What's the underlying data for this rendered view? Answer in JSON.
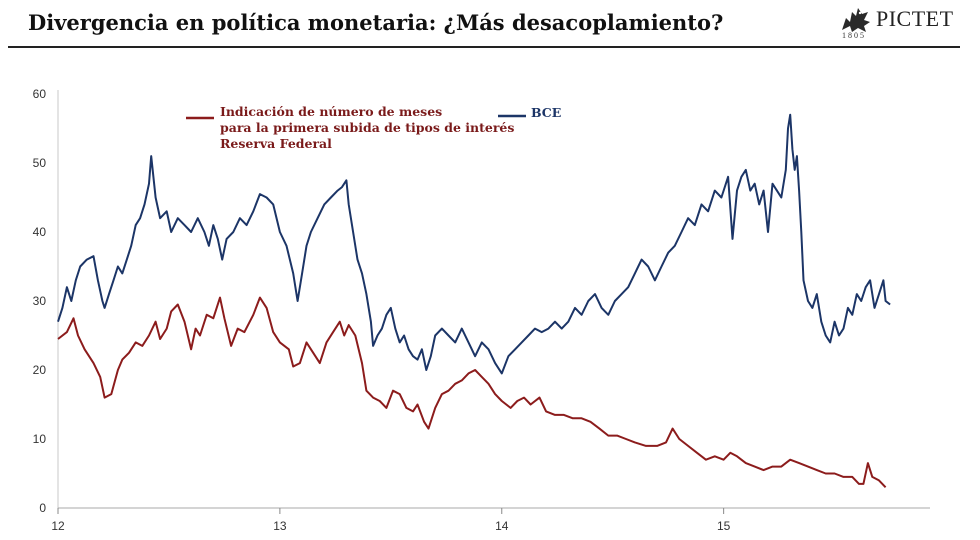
{
  "header": {
    "title": "Divergencia en política monetaria: ¿Más desacoplamiento?",
    "logo_word": "PICTET",
    "logo_year": "1805"
  },
  "chart_data": {
    "type": "line",
    "title": "",
    "xlabel": "",
    "ylabel": "",
    "xlim": [
      12,
      15.93
    ],
    "ylim": [
      0,
      60
    ],
    "x_ticks": [
      "12",
      "13",
      "14",
      "15"
    ],
    "y_ticks": [
      "0",
      "10",
      "20",
      "30",
      "40",
      "50",
      "60"
    ],
    "grid": false,
    "legend_position": "top-center",
    "colors": {
      "fed": "#8c1c1c",
      "ecb": "#1c3567"
    },
    "series": [
      {
        "key": "fed",
        "legend_lines": [
          "Indicación de número de meses",
          "para la primera subida de tipos de interés",
          "Reserva Federal"
        ],
        "points": [
          [
            12.0,
            24.5
          ],
          [
            12.04,
            25.5
          ],
          [
            12.07,
            27.5
          ],
          [
            12.09,
            25
          ],
          [
            12.12,
            23
          ],
          [
            12.16,
            21
          ],
          [
            12.19,
            19
          ],
          [
            12.21,
            16
          ],
          [
            12.24,
            16.5
          ],
          [
            12.27,
            20
          ],
          [
            12.29,
            21.5
          ],
          [
            12.32,
            22.5
          ],
          [
            12.35,
            24
          ],
          [
            12.38,
            23.5
          ],
          [
            12.41,
            25
          ],
          [
            12.44,
            27
          ],
          [
            12.46,
            24.5
          ],
          [
            12.49,
            26
          ],
          [
            12.51,
            28.5
          ],
          [
            12.54,
            29.5
          ],
          [
            12.57,
            27
          ],
          [
            12.6,
            23
          ],
          [
            12.62,
            26
          ],
          [
            12.64,
            25
          ],
          [
            12.67,
            28
          ],
          [
            12.7,
            27.5
          ],
          [
            12.73,
            30.5
          ],
          [
            12.75,
            27.5
          ],
          [
            12.78,
            23.5
          ],
          [
            12.81,
            26
          ],
          [
            12.84,
            25.5
          ],
          [
            12.88,
            28
          ],
          [
            12.91,
            30.5
          ],
          [
            12.94,
            29
          ],
          [
            12.97,
            25.5
          ],
          [
            13.0,
            24
          ],
          [
            13.04,
            23
          ],
          [
            13.06,
            20.5
          ],
          [
            13.09,
            21
          ],
          [
            13.12,
            24
          ],
          [
            13.15,
            22.5
          ],
          [
            13.18,
            21
          ],
          [
            13.21,
            24
          ],
          [
            13.24,
            25.5
          ],
          [
            13.27,
            27
          ],
          [
            13.29,
            25
          ],
          [
            13.31,
            26.5
          ],
          [
            13.34,
            25
          ],
          [
            13.37,
            21
          ],
          [
            13.39,
            17
          ],
          [
            13.42,
            16
          ],
          [
            13.45,
            15.5
          ],
          [
            13.48,
            14.5
          ],
          [
            13.51,
            17
          ],
          [
            13.54,
            16.5
          ],
          [
            13.57,
            14.5
          ],
          [
            13.6,
            14
          ],
          [
            13.62,
            15
          ],
          [
            13.65,
            12.5
          ],
          [
            13.67,
            11.5
          ],
          [
            13.7,
            14.5
          ],
          [
            13.73,
            16.5
          ],
          [
            13.76,
            17
          ],
          [
            13.79,
            18
          ],
          [
            13.82,
            18.5
          ],
          [
            13.85,
            19.5
          ],
          [
            13.88,
            20
          ],
          [
            13.91,
            19
          ],
          [
            13.94,
            18
          ],
          [
            13.97,
            16.5
          ],
          [
            14.0,
            15.5
          ],
          [
            14.04,
            14.5
          ],
          [
            14.07,
            15.5
          ],
          [
            14.1,
            16
          ],
          [
            14.13,
            15
          ],
          [
            14.17,
            16
          ],
          [
            14.2,
            14
          ],
          [
            14.24,
            13.5
          ],
          [
            14.28,
            13.5
          ],
          [
            14.32,
            13
          ],
          [
            14.36,
            13
          ],
          [
            14.4,
            12.5
          ],
          [
            14.44,
            11.5
          ],
          [
            14.48,
            10.5
          ],
          [
            14.52,
            10.5
          ],
          [
            14.56,
            10
          ],
          [
            14.6,
            9.5
          ],
          [
            14.65,
            9
          ],
          [
            14.7,
            9
          ],
          [
            14.74,
            9.5
          ],
          [
            14.77,
            11.5
          ],
          [
            14.8,
            10
          ],
          [
            14.84,
            9
          ],
          [
            14.88,
            8
          ],
          [
            14.92,
            7
          ],
          [
            14.96,
            7.5
          ],
          [
            15.0,
            7
          ],
          [
            15.03,
            8
          ],
          [
            15.06,
            7.5
          ],
          [
            15.1,
            6.5
          ],
          [
            15.14,
            6
          ],
          [
            15.18,
            5.5
          ],
          [
            15.22,
            6
          ],
          [
            15.26,
            6
          ],
          [
            15.3,
            7
          ],
          [
            15.34,
            6.5
          ],
          [
            15.38,
            6
          ],
          [
            15.42,
            5.5
          ],
          [
            15.46,
            5
          ],
          [
            15.5,
            5
          ],
          [
            15.54,
            4.5
          ],
          [
            15.58,
            4.5
          ],
          [
            15.61,
            3.5
          ],
          [
            15.63,
            3.5
          ],
          [
            15.65,
            6.5
          ],
          [
            15.67,
            4.5
          ],
          [
            15.7,
            4
          ],
          [
            15.73,
            3
          ]
        ]
      },
      {
        "key": "ecb",
        "name": "BCE",
        "points": [
          [
            12.0,
            27
          ],
          [
            12.02,
            29
          ],
          [
            12.04,
            32
          ],
          [
            12.06,
            30
          ],
          [
            12.08,
            33
          ],
          [
            12.1,
            35
          ],
          [
            12.13,
            36
          ],
          [
            12.16,
            36.5
          ],
          [
            12.18,
            33
          ],
          [
            12.2,
            30
          ],
          [
            12.21,
            29
          ],
          [
            12.23,
            31
          ],
          [
            12.25,
            33
          ],
          [
            12.27,
            35
          ],
          [
            12.29,
            34
          ],
          [
            12.31,
            36
          ],
          [
            12.33,
            38
          ],
          [
            12.35,
            41
          ],
          [
            12.37,
            42
          ],
          [
            12.39,
            44
          ],
          [
            12.41,
            47
          ],
          [
            12.42,
            51
          ],
          [
            12.44,
            45
          ],
          [
            12.46,
            42
          ],
          [
            12.49,
            43
          ],
          [
            12.51,
            40
          ],
          [
            12.54,
            42
          ],
          [
            12.57,
            41
          ],
          [
            12.6,
            40
          ],
          [
            12.63,
            42
          ],
          [
            12.66,
            40
          ],
          [
            12.68,
            38
          ],
          [
            12.7,
            41
          ],
          [
            12.72,
            39
          ],
          [
            12.74,
            36
          ],
          [
            12.76,
            39
          ],
          [
            12.79,
            40
          ],
          [
            12.82,
            42
          ],
          [
            12.85,
            41
          ],
          [
            12.88,
            43
          ],
          [
            12.91,
            45.5
          ],
          [
            12.94,
            45
          ],
          [
            12.97,
            44
          ],
          [
            13.0,
            40
          ],
          [
            13.03,
            38
          ],
          [
            13.06,
            34
          ],
          [
            13.08,
            30
          ],
          [
            13.1,
            34
          ],
          [
            13.12,
            38
          ],
          [
            13.14,
            40
          ],
          [
            13.17,
            42
          ],
          [
            13.2,
            44
          ],
          [
            13.23,
            45
          ],
          [
            13.26,
            46
          ],
          [
            13.28,
            46.5
          ],
          [
            13.3,
            47.5
          ],
          [
            13.31,
            44
          ],
          [
            13.33,
            40
          ],
          [
            13.35,
            36
          ],
          [
            13.37,
            34
          ],
          [
            13.39,
            31
          ],
          [
            13.41,
            27
          ],
          [
            13.42,
            23.5
          ],
          [
            13.44,
            25
          ],
          [
            13.46,
            26
          ],
          [
            13.48,
            28
          ],
          [
            13.5,
            29
          ],
          [
            13.52,
            26
          ],
          [
            13.54,
            24
          ],
          [
            13.56,
            25
          ],
          [
            13.58,
            23
          ],
          [
            13.6,
            22
          ],
          [
            13.62,
            21.5
          ],
          [
            13.64,
            23
          ],
          [
            13.66,
            20
          ],
          [
            13.68,
            22
          ],
          [
            13.7,
            25
          ],
          [
            13.73,
            26
          ],
          [
            13.76,
            25
          ],
          [
            13.79,
            24
          ],
          [
            13.82,
            26
          ],
          [
            13.85,
            24
          ],
          [
            13.88,
            22
          ],
          [
            13.91,
            24
          ],
          [
            13.94,
            23
          ],
          [
            13.97,
            21
          ],
          [
            14.0,
            19.5
          ],
          [
            14.03,
            22
          ],
          [
            14.06,
            23
          ],
          [
            14.09,
            24
          ],
          [
            14.12,
            25
          ],
          [
            14.15,
            26
          ],
          [
            14.18,
            25.5
          ],
          [
            14.21,
            26
          ],
          [
            14.24,
            27
          ],
          [
            14.27,
            26
          ],
          [
            14.3,
            27
          ],
          [
            14.33,
            29
          ],
          [
            14.36,
            28
          ],
          [
            14.39,
            30
          ],
          [
            14.42,
            31
          ],
          [
            14.45,
            29
          ],
          [
            14.48,
            28
          ],
          [
            14.51,
            30
          ],
          [
            14.54,
            31
          ],
          [
            14.57,
            32
          ],
          [
            14.6,
            34
          ],
          [
            14.63,
            36
          ],
          [
            14.66,
            35
          ],
          [
            14.69,
            33
          ],
          [
            14.72,
            35
          ],
          [
            14.75,
            37
          ],
          [
            14.78,
            38
          ],
          [
            14.81,
            40
          ],
          [
            14.84,
            42
          ],
          [
            14.87,
            41
          ],
          [
            14.9,
            44
          ],
          [
            14.93,
            43
          ],
          [
            14.96,
            46
          ],
          [
            14.99,
            45
          ],
          [
            15.02,
            48
          ],
          [
            15.04,
            39
          ],
          [
            15.06,
            46
          ],
          [
            15.08,
            48
          ],
          [
            15.1,
            49
          ],
          [
            15.12,
            46
          ],
          [
            15.14,
            47
          ],
          [
            15.16,
            44
          ],
          [
            15.18,
            46
          ],
          [
            15.2,
            40
          ],
          [
            15.22,
            47
          ],
          [
            15.24,
            46
          ],
          [
            15.26,
            45
          ],
          [
            15.28,
            49
          ],
          [
            15.29,
            55
          ],
          [
            15.3,
            57
          ],
          [
            15.31,
            52
          ],
          [
            15.32,
            49
          ],
          [
            15.33,
            51
          ],
          [
            15.34,
            46
          ],
          [
            15.35,
            40
          ],
          [
            15.36,
            33
          ],
          [
            15.38,
            30
          ],
          [
            15.4,
            29
          ],
          [
            15.42,
            31
          ],
          [
            15.44,
            27
          ],
          [
            15.46,
            25
          ],
          [
            15.48,
            24
          ],
          [
            15.5,
            27
          ],
          [
            15.52,
            25
          ],
          [
            15.54,
            26
          ],
          [
            15.56,
            29
          ],
          [
            15.58,
            28
          ],
          [
            15.6,
            31
          ],
          [
            15.62,
            30
          ],
          [
            15.64,
            32
          ],
          [
            15.66,
            33
          ],
          [
            15.68,
            29
          ],
          [
            15.7,
            31
          ],
          [
            15.72,
            33
          ],
          [
            15.73,
            30
          ],
          [
            15.75,
            29.5
          ]
        ]
      }
    ]
  }
}
